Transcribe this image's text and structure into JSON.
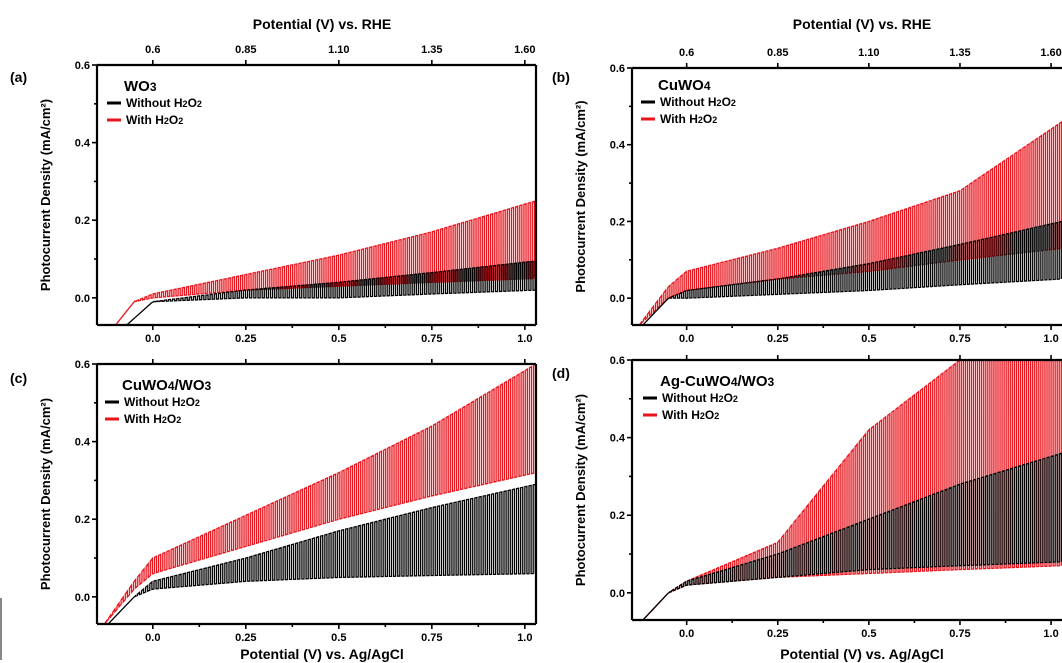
{
  "top_axis_label": "Potential (V) vs. RHE",
  "bottom_axis_label": "Potential (V) vs. Ag/AgCl",
  "y_axis_label": "Photocurrent Density (mA/cm²)",
  "colors": {
    "without": "#000000",
    "with": "#e8131b"
  },
  "chart_data": [
    {
      "panel": "(a)",
      "type": "line",
      "title": "WO3",
      "xlabel": "Potential (V) vs. Ag/AgCl",
      "x2label": "Potential (V) vs. RHE",
      "ylabel": "Photocurrent Density (mA/cm²)",
      "xlim": [
        -0.15,
        1.03
      ],
      "ylim": [
        -0.07,
        0.6
      ],
      "x_ticks": [
        0.0,
        0.25,
        0.5,
        0.75,
        1.0
      ],
      "x_tick_labels": [
        "0.0",
        "0.25",
        "0.5",
        "0.75",
        "1.0"
      ],
      "y_ticks": [
        0.0,
        0.2,
        0.4,
        0.6
      ],
      "y_tick_labels": [
        "0.0",
        "0.2",
        "0.4",
        "0.6"
      ],
      "x2_tick_labels": [
        "0.6",
        "0.85",
        "1.10",
        "1.35",
        "1.60"
      ],
      "legend": "top-left",
      "series": [
        {
          "name": "Without H2O2",
          "color": "#000000",
          "x": [
            -0.07,
            0.0,
            0.25,
            0.5,
            0.75,
            1.03
          ],
          "on": [
            -0.07,
            -0.01,
            0.02,
            0.04,
            0.065,
            0.095
          ],
          "off": [
            -0.07,
            -0.01,
            0.0,
            0.0,
            0.01,
            0.02
          ]
        },
        {
          "name": "With H2O2",
          "color": "#e8131b",
          "x": [
            -0.1,
            -0.05,
            0.0,
            0.25,
            0.5,
            0.75,
            1.03
          ],
          "on": [
            -0.07,
            -0.01,
            0.01,
            0.06,
            0.11,
            0.17,
            0.25
          ],
          "off": [
            -0.07,
            -0.01,
            0.0,
            0.02,
            0.03,
            0.04,
            0.05
          ]
        }
      ]
    },
    {
      "panel": "(b)",
      "type": "line",
      "title": "CuWO4",
      "xlabel": "Potential (V) vs. Ag/AgCl",
      "x2label": "Potential (V) vs. RHE",
      "ylabel": "Photocurrent Density (mA/cm²)",
      "xlim": [
        -0.15,
        1.03
      ],
      "ylim": [
        -0.07,
        0.6
      ],
      "x_ticks": [
        0.0,
        0.25,
        0.5,
        0.75,
        1.0
      ],
      "x_tick_labels": [
        "0.0",
        "0.25",
        "0.5",
        "0.75",
        "1.0"
      ],
      "y_ticks": [
        0.0,
        0.2,
        0.4,
        0.6
      ],
      "y_tick_labels": [
        "0.0",
        "0.2",
        "0.4",
        "0.6"
      ],
      "x2_tick_labels": [
        "0.6",
        "0.85",
        "1.10",
        "1.35",
        "1.60"
      ],
      "legend": "top-left",
      "series": [
        {
          "name": "Without H2O2",
          "color": "#000000",
          "x": [
            -0.12,
            -0.05,
            0.0,
            0.25,
            0.5,
            0.75,
            1.03
          ],
          "on": [
            -0.07,
            0.0,
            0.02,
            0.05,
            0.09,
            0.14,
            0.2
          ],
          "off": [
            -0.07,
            0.0,
            0.0,
            0.01,
            0.02,
            0.035,
            0.05
          ]
        },
        {
          "name": "With H2O2",
          "color": "#e8131b",
          "x": [
            -0.13,
            -0.05,
            0.0,
            0.25,
            0.5,
            0.75,
            1.03
          ],
          "on": [
            -0.07,
            0.03,
            0.07,
            0.13,
            0.2,
            0.28,
            0.46
          ],
          "off": [
            -0.07,
            0.0,
            0.02,
            0.05,
            0.07,
            0.1,
            0.13
          ]
        }
      ]
    },
    {
      "panel": "(c)",
      "type": "line",
      "title": "CuWO4/WO3",
      "xlabel": "Potential (V) vs. Ag/AgCl",
      "x2label": "",
      "ylabel": "Photocurrent Density (mA/cm²)",
      "xlim": [
        -0.15,
        1.03
      ],
      "ylim": [
        -0.07,
        0.6
      ],
      "x_ticks": [
        0.0,
        0.25,
        0.5,
        0.75,
        1.0
      ],
      "x_tick_labels": [
        "0.0",
        "0.25",
        "0.5",
        "0.75",
        "1.0"
      ],
      "y_ticks": [
        0.0,
        0.2,
        0.4,
        0.6
      ],
      "y_tick_labels": [
        "0.0",
        "0.2",
        "0.4",
        "0.6"
      ],
      "x2_tick_labels": [],
      "legend": "top-left",
      "series": [
        {
          "name": "Without H2O2",
          "color": "#000000",
          "x": [
            -0.12,
            -0.05,
            0.0,
            0.25,
            0.5,
            0.75,
            1.03
          ],
          "on": [
            -0.07,
            0.0,
            0.04,
            0.1,
            0.17,
            0.23,
            0.29
          ],
          "off": [
            -0.07,
            0.0,
            0.02,
            0.04,
            0.05,
            0.055,
            0.06
          ]
        },
        {
          "name": "With H2O2",
          "color": "#e8131b",
          "x": [
            -0.13,
            -0.05,
            0.0,
            0.25,
            0.5,
            0.75,
            1.03
          ],
          "on": [
            -0.07,
            0.04,
            0.1,
            0.21,
            0.32,
            0.44,
            0.6
          ],
          "off": [
            -0.07,
            0.02,
            0.06,
            0.13,
            0.2,
            0.26,
            0.32
          ]
        }
      ]
    },
    {
      "panel": "(d)",
      "type": "line",
      "title": "Ag-CuWO4/WO3",
      "xlabel": "Potential (V) vs. Ag/AgCl",
      "x2label": "",
      "ylabel": "Photocurrent Density (mA/cm²)",
      "xlim": [
        -0.15,
        1.03
      ],
      "ylim": [
        -0.07,
        0.6
      ],
      "x_ticks": [
        0.0,
        0.25,
        0.5,
        0.75,
        1.0
      ],
      "x_tick_labels": [
        "0.0",
        "0.25",
        "0.5",
        "0.75",
        "1.0"
      ],
      "y_ticks": [
        0.0,
        0.2,
        0.4,
        0.6
      ],
      "y_tick_labels": [
        "0.0",
        "0.2",
        "0.4",
        "0.6"
      ],
      "x2_tick_labels": [],
      "legend": "top-left",
      "series": [
        {
          "name": "Without H2O2",
          "color": "#000000",
          "x": [
            -0.12,
            -0.05,
            0.0,
            0.25,
            0.5,
            0.75,
            1.03
          ],
          "on": [
            -0.07,
            0.0,
            0.03,
            0.1,
            0.19,
            0.28,
            0.36
          ],
          "off": [
            -0.07,
            0.0,
            0.02,
            0.04,
            0.06,
            0.07,
            0.08
          ]
        },
        {
          "name": "With H2O2",
          "color": "#e8131b",
          "x": [
            -0.12,
            -0.05,
            0.0,
            0.25,
            0.5,
            0.75,
            1.03
          ],
          "on": [
            -0.07,
            0.0,
            0.03,
            0.13,
            0.42,
            0.6,
            0.6
          ],
          "off": [
            -0.07,
            0.0,
            0.02,
            0.04,
            0.05,
            0.06,
            0.07
          ]
        }
      ]
    }
  ]
}
